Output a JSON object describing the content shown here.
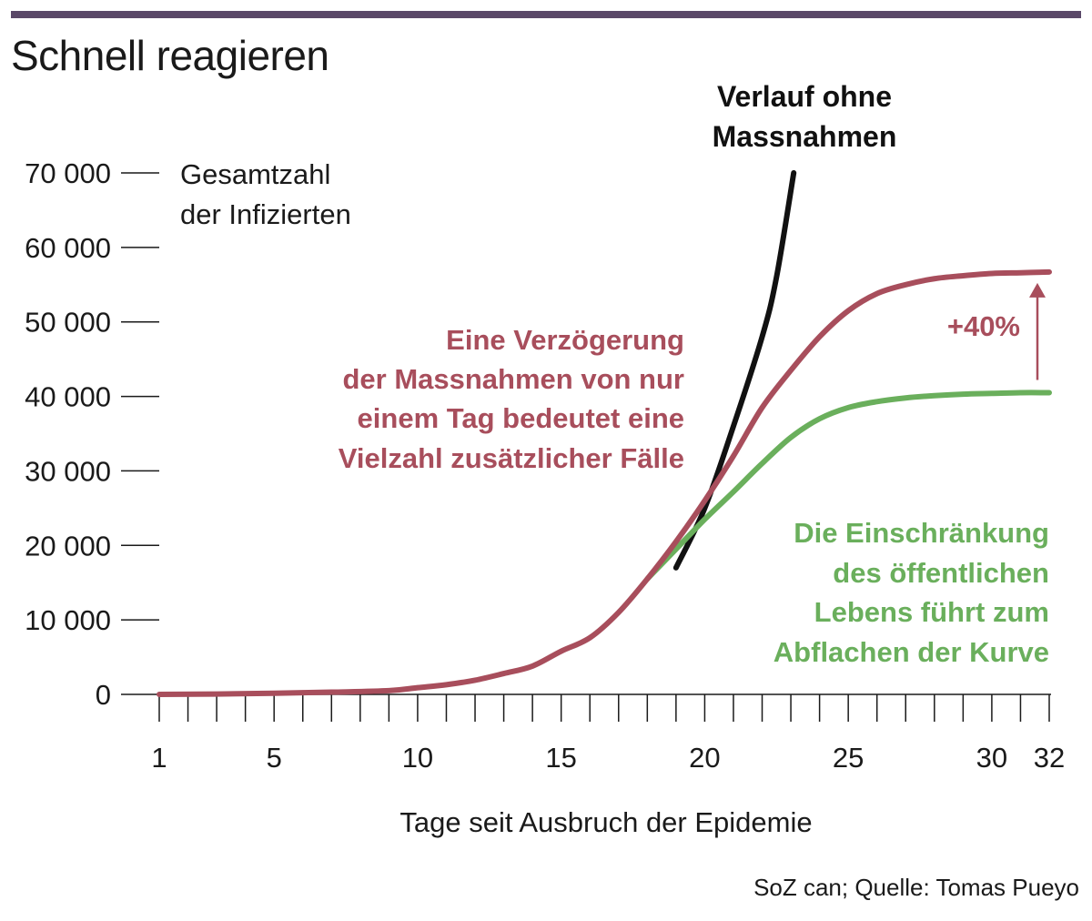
{
  "header": {
    "title": "Schnell reagieren",
    "source": "SoZ can; Quelle: Tomas Pueyo"
  },
  "chart_data": {
    "type": "line",
    "title": "Schnell reagieren",
    "xlabel": "Tage seit Ausbruch der Epidemie",
    "ylabel": "Gesamtzahl der Infizierten",
    "xlim": [
      1,
      32
    ],
    "ylim": [
      0,
      70000
    ],
    "x_ticks": [
      1,
      5,
      10,
      15,
      20,
      25,
      30,
      32
    ],
    "x_tick_labels": [
      "1",
      "5",
      "10",
      "15",
      "20",
      "25",
      "30",
      "32"
    ],
    "y_ticks": [
      0,
      10000,
      20000,
      30000,
      40000,
      50000,
      60000,
      70000
    ],
    "y_tick_labels": [
      "0",
      "10 000",
      "20 000",
      "30 000",
      "40 000",
      "50 000",
      "60 000",
      "70 000"
    ],
    "colors": {
      "black": "#111111",
      "red": "#a84e5c",
      "green": "#6aaf5c",
      "topbar": "#5a4868"
    },
    "series": [
      {
        "name": "Verlauf ohne Massnahmen",
        "color": "#111111",
        "x": [
          19,
          20,
          21,
          22,
          22.5,
          23.1
        ],
        "y": [
          17000,
          25000,
          36000,
          48000,
          56000,
          70000
        ]
      },
      {
        "name": "",
        "color": "#a84e5c",
        "x": [
          1,
          3,
          5,
          7,
          9,
          10,
          11,
          12,
          13,
          14,
          15,
          16,
          17,
          18,
          19,
          20,
          21,
          22,
          23,
          24,
          25,
          26,
          27,
          28,
          29,
          30,
          31,
          32
        ],
        "y": [
          0,
          50,
          150,
          300,
          500,
          900,
          1300,
          1900,
          2800,
          3800,
          5800,
          7600,
          11000,
          15500,
          20500,
          26000,
          32000,
          38500,
          43500,
          48000,
          51500,
          53800,
          55000,
          55800,
          56200,
          56500,
          56600,
          56700
        ]
      },
      {
        "name": "",
        "color": "#6aaf5c",
        "x": [
          18,
          19,
          20,
          21,
          22,
          23,
          24,
          25,
          26,
          27,
          28,
          29,
          30,
          31,
          32
        ],
        "y": [
          15500,
          19500,
          23500,
          27200,
          31000,
          34500,
          37000,
          38500,
          39300,
          39800,
          40100,
          40300,
          40400,
          40500,
          40500
        ]
      }
    ],
    "annotations": {
      "ylabel_line1": "Gesamtzahl",
      "ylabel_line2": "der Infizierten",
      "black_label_line1": "Verlauf ohne",
      "black_label_line2": "Massnahmen",
      "red_label": [
        "Eine Verzögerung",
        "der Massnahmen von nur",
        "einem Tag bedeutet eine",
        "Vielzahl zusätzlicher Fälle"
      ],
      "green_label": [
        "Die Einschränkung",
        "des öffentlichen",
        "Lebens führt zum",
        "Abflachen der Kurve"
      ],
      "difference_label": "+40%",
      "difference_arrow_from": 40500,
      "difference_arrow_to": 56700
    }
  }
}
